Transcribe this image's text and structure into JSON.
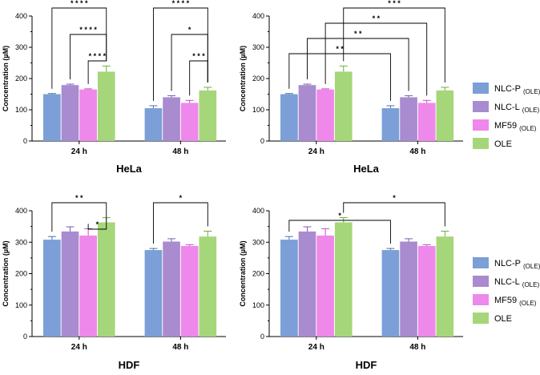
{
  "colors": {
    "NLC-P": "#7b9fd6",
    "NLC-L": "#a98bd0",
    "MF59": "#ee88ea",
    "OLE": "#a6d67a",
    "NLC-P_err": "#4b6fb0",
    "NLC-L_err": "#7d5aab",
    "MF59_err": "#c44ec2",
    "OLE_err": "#6cae3c"
  },
  "legend": [
    {
      "key": "NLC-P",
      "main": "NLC-P",
      "sub": "(OLE)"
    },
    {
      "key": "NLC-L",
      "main": "NLC-L",
      "sub": "(OLE)"
    },
    {
      "key": "MF59",
      "main": "MF59",
      "sub": "(OLE)"
    },
    {
      "key": "OLE",
      "main": "OLE",
      "sub": ""
    }
  ],
  "chart_data": [
    {
      "type": "bar",
      "title": "HeLa",
      "ylabel": "Concentration (µM)",
      "ylim": [
        0,
        400
      ],
      "yticks": [
        0,
        100,
        200,
        300,
        400
      ],
      "categories": [
        "24 h",
        "48 h"
      ],
      "series": [
        {
          "name": "NLC-P (OLE)",
          "key": "NLC-P",
          "values": [
            150,
            105
          ],
          "errors": [
            2,
            8
          ]
        },
        {
          "name": "NLC-L (OLE)",
          "key": "NLC-L",
          "values": [
            179,
            140
          ],
          "errors": [
            3,
            5
          ]
        },
        {
          "name": "MF59 (OLE)",
          "key": "MF59",
          "values": [
            165,
            122
          ],
          "errors": [
            2,
            8
          ]
        },
        {
          "name": "OLE",
          "key": "OLE",
          "values": [
            222,
            162
          ],
          "errors": [
            18,
            10
          ]
        }
      ],
      "significance": [
        {
          "from": [
            0,
            0
          ],
          "to": [
            0,
            3
          ],
          "label": "* * * *"
        },
        {
          "from": [
            0,
            1
          ],
          "to": [
            0,
            3
          ],
          "label": "* * * *"
        },
        {
          "from": [
            0,
            2
          ],
          "to": [
            0,
            3
          ],
          "label": "* * * *"
        },
        {
          "from": [
            1,
            0
          ],
          "to": [
            1,
            3
          ],
          "label": "* * * *"
        },
        {
          "from": [
            1,
            1
          ],
          "to": [
            1,
            3
          ],
          "label": "*"
        },
        {
          "from": [
            1,
            2
          ],
          "to": [
            1,
            3
          ],
          "label": "* * *"
        }
      ]
    },
    {
      "type": "bar",
      "title": "HeLa",
      "ylabel": "Concentration (µM)",
      "ylim": [
        0,
        400
      ],
      "yticks": [
        0,
        100,
        200,
        300,
        400
      ],
      "categories": [
        "24 h",
        "48 h"
      ],
      "series": [
        {
          "name": "NLC-P (OLE)",
          "key": "NLC-P",
          "values": [
            150,
            105
          ],
          "errors": [
            2,
            8
          ]
        },
        {
          "name": "NLC-L (OLE)",
          "key": "NLC-L",
          "values": [
            179,
            140
          ],
          "errors": [
            3,
            5
          ]
        },
        {
          "name": "MF59 (OLE)",
          "key": "MF59",
          "values": [
            165,
            122
          ],
          "errors": [
            2,
            8
          ]
        },
        {
          "name": "OLE",
          "key": "OLE",
          "values": [
            222,
            162
          ],
          "errors": [
            18,
            10
          ]
        }
      ],
      "significance": [
        {
          "from": [
            0,
            3
          ],
          "to": [
            1,
            3
          ],
          "label": "* * *"
        },
        {
          "from": [
            0,
            2
          ],
          "to": [
            1,
            2
          ],
          "label": "* *"
        },
        {
          "from": [
            0,
            1
          ],
          "to": [
            1,
            1
          ],
          "label": "* *"
        },
        {
          "from": [
            0,
            0
          ],
          "to": [
            1,
            0
          ],
          "label": "* *"
        }
      ]
    },
    {
      "type": "bar",
      "title": "HDF",
      "ylabel": "Concentration (µM)",
      "ylim": [
        0,
        400
      ],
      "yticks": [
        0,
        100,
        200,
        300,
        400
      ],
      "categories": [
        "24 h",
        "48 h"
      ],
      "series": [
        {
          "name": "NLC-P (OLE)",
          "key": "NLC-P",
          "values": [
            308,
            275
          ],
          "errors": [
            10,
            5
          ]
        },
        {
          "name": "NLC-L (OLE)",
          "key": "NLC-L",
          "values": [
            334,
            302
          ],
          "errors": [
            15,
            9
          ]
        },
        {
          "name": "MF59 (OLE)",
          "key": "MF59",
          "values": [
            321,
            288
          ],
          "errors": [
            22,
            4
          ]
        },
        {
          "name": "OLE",
          "key": "OLE",
          "values": [
            363,
            318
          ],
          "errors": [
            15,
            17
          ]
        }
      ],
      "significance": [
        {
          "from": [
            0,
            0
          ],
          "to": [
            0,
            3
          ],
          "label": "* *"
        },
        {
          "from": [
            0,
            2
          ],
          "to": [
            0,
            3
          ],
          "label": "*"
        },
        {
          "from": [
            1,
            0
          ],
          "to": [
            1,
            3
          ],
          "label": "*"
        }
      ]
    },
    {
      "type": "bar",
      "title": "HDF",
      "ylabel": "Concentration (µM)",
      "ylim": [
        0,
        400
      ],
      "yticks": [
        0,
        100,
        200,
        300,
        400
      ],
      "categories": [
        "24 h",
        "48 h"
      ],
      "series": [
        {
          "name": "NLC-P (OLE)",
          "key": "NLC-P",
          "values": [
            308,
            275
          ],
          "errors": [
            10,
            5
          ]
        },
        {
          "name": "NLC-L (OLE)",
          "key": "NLC-L",
          "values": [
            334,
            302
          ],
          "errors": [
            15,
            9
          ]
        },
        {
          "name": "MF59 (OLE)",
          "key": "MF59",
          "values": [
            321,
            288
          ],
          "errors": [
            22,
            4
          ]
        },
        {
          "name": "OLE",
          "key": "OLE",
          "values": [
            363,
            318
          ],
          "errors": [
            15,
            17
          ]
        }
      ],
      "significance": [
        {
          "from": [
            0,
            3
          ],
          "to": [
            1,
            3
          ],
          "label": "*"
        },
        {
          "from": [
            0,
            0
          ],
          "to": [
            1,
            0
          ],
          "label": "*"
        }
      ]
    }
  ]
}
